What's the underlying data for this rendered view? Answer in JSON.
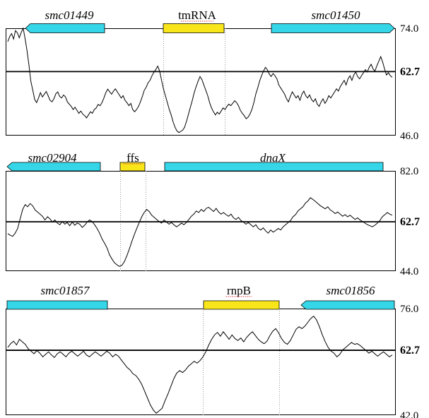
{
  "colors": {
    "protein_gene": "#35d6e8",
    "rna_gene": "#f8e61a",
    "trace": "#000000",
    "threshold": "#000000"
  },
  "panels": [
    {
      "genes": [
        {
          "name": "smc01449",
          "type": "protein",
          "italic": true,
          "direction": "left"
        },
        {
          "name": "tmRNA",
          "type": "rna",
          "italic": false,
          "direction": "none"
        },
        {
          "name": "smc01450",
          "type": "protein",
          "italic": true,
          "direction": "right"
        }
      ],
      "y_axis": {
        "max_label": "74.0",
        "threshold_label": "62.7",
        "min_label": "46.0",
        "max": 74.0,
        "min": 46.0,
        "threshold": 62.7
      },
      "trace": [
        70.5,
        71.8,
        72.6,
        71.2,
        73.4,
        72.8,
        71.5,
        72.9,
        74.0,
        71.3,
        68.2,
        64.5,
        60.2,
        57.8,
        55.4,
        54.6,
        55.8,
        57.2,
        56.1,
        56.8,
        57.5,
        56.4,
        55.2,
        54.8,
        55.6,
        56.9,
        57.4,
        56.2,
        55.8,
        56.6,
        56.1,
        54.8,
        54.2,
        53.6,
        52.8,
        53.4,
        52.6,
        51.8,
        52.4,
        51.6,
        51.2,
        50.6,
        51.4,
        52.2,
        51.8,
        52.8,
        53.2,
        54.1,
        53.8,
        54.6,
        55.8,
        57.2,
        58.1,
        57.4,
        56.8,
        57.6,
        58.2,
        57.4,
        56.6,
        55.8,
        56.4,
        55.2,
        54.6,
        53.8,
        54.4,
        52.8,
        52.2,
        52.8,
        53.6,
        54.8,
        56.2,
        57.8,
        58.6,
        59.8,
        60.4,
        61.6,
        62.5,
        63.2,
        64.1,
        62.8,
        60.4,
        58.2,
        56.4,
        54.6,
        52.8,
        51.4,
        49.6,
        48.2,
        47.2,
        46.8,
        47.1,
        47.4,
        48.2,
        49.8,
        51.6,
        53.4,
        55.2,
        57.2,
        58.8,
        60.2,
        61.4,
        60.6,
        59.2,
        57.8,
        56.4,
        54.6,
        53.2,
        52.2,
        51.4,
        52.1,
        51.6,
        52.4,
        53.2,
        52.8,
        53.6,
        54.2,
        53.8,
        54.4,
        55.1,
        54.6,
        53.8,
        52.6,
        51.8,
        51.2,
        50.4,
        50.8,
        51.6,
        52.8,
        54.6,
        56.8,
        58.4,
        60.2,
        61.6,
        62.8,
        63.8,
        63.2,
        62.1,
        61.4,
        62.2,
        61.6,
        60.8,
        59.2,
        58.4,
        57.6,
        56.8,
        55.6,
        54.8,
        56.2,
        57.4,
        56.6,
        55.8,
        56.4,
        55.2,
        56.8,
        57.6,
        56.4,
        55.8,
        56.6,
        55.4,
        54.8,
        55.6,
        54.2,
        53.6,
        54.8,
        55.6,
        54.4,
        55.2,
        56.4,
        55.8,
        56.6,
        57.4,
        58.2,
        57.6,
        58.8,
        59.6,
        60.4,
        59.2,
        60.8,
        61.6,
        60.4,
        61.8,
        62.6,
        61.4,
        60.8,
        61.6,
        62.4,
        63.2,
        62.6,
        63.8,
        64.6,
        63.4,
        62.8,
        64.2,
        65.4,
        66.6,
        65.2,
        63.4,
        61.8,
        62.4,
        61.6,
        61.2
      ]
    },
    {
      "genes": [
        {
          "name": "smc02904",
          "type": "protein",
          "italic": true,
          "direction": "left"
        },
        {
          "name": "ffs",
          "type": "rna",
          "italic": false,
          "direction": "none"
        },
        {
          "name": "dnaX",
          "type": "protein",
          "italic": true,
          "direction": "none"
        }
      ],
      "y_axis": {
        "max_label": "82.0",
        "threshold_label": "62.7",
        "min_label": "44.0",
        "max": 82.0,
        "min": 44.0,
        "threshold": 62.7
      },
      "trace": [
        58.2,
        57.6,
        57.2,
        58.4,
        60.2,
        63.8,
        67.4,
        69.2,
        68.4,
        69.6,
        68.8,
        67.2,
        66.4,
        65.6,
        64.8,
        63.4,
        64.6,
        63.8,
        62.6,
        63.4,
        62.2,
        61.6,
        62.8,
        61.8,
        62.4,
        61.2,
        62.6,
        61.4,
        62.2,
        61.8,
        60.6,
        61.4,
        62.6,
        63.4,
        62.8,
        61.6,
        60.2,
        58.4,
        56.2,
        54.6,
        52.8,
        50.2,
        48.6,
        47.2,
        46.4,
        45.8,
        46.2,
        47.6,
        49.8,
        52.4,
        55.2,
        57.8,
        60.2,
        62.4,
        64.6,
        66.2,
        67.4,
        66.6,
        65.2,
        64.4,
        63.6,
        62.8,
        62.2,
        63.4,
        62.6,
        61.8,
        62.4,
        61.6,
        60.8,
        61.4,
        62.2,
        61.6,
        62.4,
        63.6,
        64.8,
        65.6,
        66.8,
        66.2,
        67.4,
        66.6,
        67.8,
        68.2,
        67.4,
        66.6,
        67.8,
        66.4,
        65.6,
        66.2,
        65.4,
        64.8,
        65.6,
        64.2,
        63.6,
        64.4,
        63.2,
        62.6,
        61.8,
        62.4,
        61.6,
        60.8,
        61.6,
        60.2,
        59.6,
        60.4,
        59.2,
        58.4,
        59.6,
        58.8,
        59.4,
        60.2,
        59.6,
        60.8,
        61.6,
        62.4,
        63.2,
        64.6,
        65.4,
        66.8,
        67.6,
        68.4,
        69.8,
        70.6,
        71.8,
        71.2,
        70.4,
        69.6,
        68.8,
        68.2,
        67.6,
        68.4,
        67.2,
        66.6,
        65.8,
        66.4,
        65.6,
        64.8,
        65.4,
        64.6,
        65.2,
        64.4,
        63.6,
        64.2,
        63.4,
        62.8,
        62.2,
        61.6,
        61.2,
        60.8,
        61.4,
        62.2,
        63.2,
        64.6,
        65.4,
        66.2,
        65.6,
        65.2
      ]
    },
    {
      "genes": [
        {
          "name": "smc01857",
          "type": "protein",
          "italic": true,
          "direction": "none"
        },
        {
          "name": "rnpB",
          "type": "rna",
          "italic": false,
          "direction": "none"
        },
        {
          "name": "smc01856",
          "type": "protein",
          "italic": true,
          "direction": "left"
        }
      ],
      "y_axis": {
        "max_label": "76.0",
        "threshold_label": "62.7",
        "min_label": "42.0",
        "max": 76.0,
        "min": 42.0,
        "threshold": 62.7
      },
      "trace": [
        63.6,
        64.8,
        65.6,
        64.4,
        66.2,
        65.4,
        64.6,
        63.2,
        62.4,
        61.6,
        62.6,
        61.8,
        60.6,
        61.4,
        62.2,
        61.2,
        60.4,
        61.6,
        62.2,
        61.4,
        60.6,
        61.8,
        62.4,
        61.6,
        60.8,
        61.6,
        62.4,
        61.2,
        60.6,
        61.4,
        62.2,
        61.6,
        60.8,
        61.6,
        62.4,
        61.8,
        60.6,
        61.4,
        60.8,
        59.6,
        58.4,
        57.2,
        56.4,
        55.2,
        54.6,
        53.4,
        51.8,
        49.6,
        47.4,
        45.2,
        43.6,
        42.6,
        43.4,
        44.2,
        46.6,
        48.8,
        51.2,
        53.6,
        55.4,
        56.2,
        55.6,
        56.4,
        57.6,
        58.4,
        59.2,
        58.6,
        59.4,
        60.6,
        62.2,
        64.4,
        66.2,
        67.6,
        68.4,
        67.2,
        68.6,
        67.4,
        66.2,
        67.6,
        66.4,
        65.8,
        66.6,
        65.4,
        66.8,
        67.8,
        68.6,
        67.4,
        66.2,
        65.4,
        64.8,
        65.6,
        67.4,
        68.8,
        69.6,
        68.2,
        66.4,
        65.2,
        64.6,
        65.8,
        67.6,
        69.4,
        70.2,
        69.6,
        70.4,
        71.6,
        72.8,
        73.6,
        72.4,
        70.2,
        67.6,
        65.4,
        63.6,
        62.4,
        61.8,
        60.6,
        61.4,
        62.8,
        63.6,
        64.4,
        65.2,
        64.6,
        64.8,
        64.2,
        63.4,
        62.6,
        61.8,
        62.4,
        61.6,
        60.8,
        61.6,
        62.2,
        61.4,
        60.6,
        61.2
      ]
    }
  ]
}
